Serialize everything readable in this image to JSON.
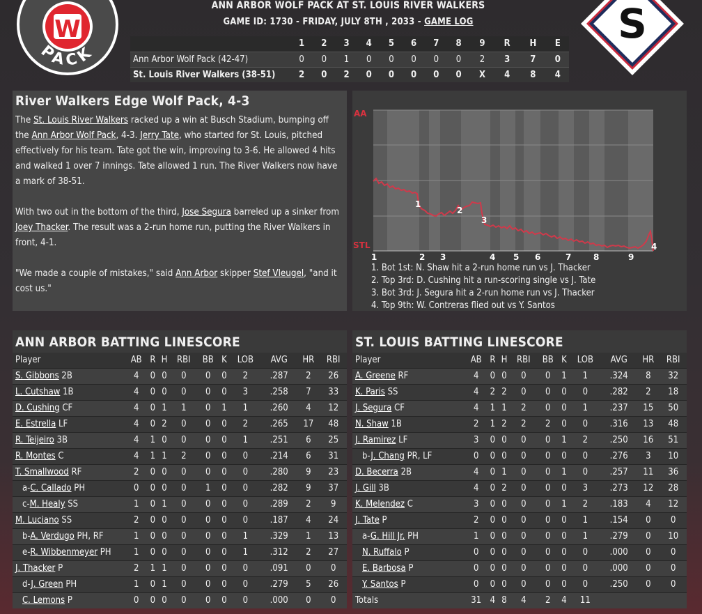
{
  "header": {
    "title": "ANN ARBOR WOLF PACK AT ST. LOUIS RIVER WALKERS",
    "subtitle": "GAME ID: 1730 - FRIDAY, JULY 8TH , 2033 - ",
    "game_log_link": "GAME LOG",
    "away_logo_text": "PACK",
    "away_logo_letter": "W",
    "home_logo_letter": "S"
  },
  "linescore": {
    "innings": [
      "1",
      "2",
      "3",
      "4",
      "5",
      "6",
      "7",
      "8",
      "9"
    ],
    "rhe_labels": [
      "R",
      "H",
      "E"
    ],
    "teams": [
      {
        "name": "Ann Arbor Wolf Pack (42-47)",
        "innings": [
          "0",
          "0",
          "1",
          "0",
          "0",
          "0",
          "0",
          "0",
          "2"
        ],
        "r": "3",
        "h": "7",
        "e": "0"
      },
      {
        "name": "St. Louis River Walkers (38-51)",
        "innings": [
          "2",
          "0",
          "2",
          "0",
          "0",
          "0",
          "0",
          "0",
          "X"
        ],
        "r": "4",
        "h": "8",
        "e": "4"
      }
    ]
  },
  "recap": {
    "headline": "River Walkers Edge Wolf Pack, 4-3",
    "p1": [
      {
        "t": "The "
      },
      {
        "t": "St. Louis River Walkers",
        "link": true
      },
      {
        "t": " racked up a win at Busch Stadium, bumping off the "
      },
      {
        "t": "Ann Arbor Wolf Pack",
        "link": true
      },
      {
        "t": ", 4-3. "
      },
      {
        "t": "Jerry Tate",
        "link": true
      },
      {
        "t": ", who started for St. Louis, pitched effectively for his team. Tate got the win, improving to 3-6. He allowed 4 hits and walked 1 over 7 innings. Tate allowed 1 run. The River Walkers now have a mark of 38-51."
      }
    ],
    "p2": [
      {
        "t": "With two out in the bottom of the third, "
      },
      {
        "t": "Jose Segura",
        "link": true
      },
      {
        "t": " barreled up a sinker from "
      },
      {
        "t": "Joey Thacker",
        "link": true
      },
      {
        "t": ". The result was a 2-run home run, putting the River Walkers in front, 4-1."
      }
    ],
    "p3": [
      {
        "t": "\"We made a couple of mistakes,\" said "
      },
      {
        "t": "Ann Arbor",
        "link": true
      },
      {
        "t": " skipper "
      },
      {
        "t": "Stef Vleugel",
        "link": true
      },
      {
        "t": ", \"and it cost us.\""
      }
    ]
  },
  "wp_chart": {
    "top_label": "AA",
    "bottom_label": "STL",
    "inning_labels": [
      "1",
      "2",
      "3",
      "4",
      "5",
      "6",
      "7",
      "8",
      "9"
    ],
    "colors": {
      "line": "#cf3a4b",
      "label": "#d7323f"
    },
    "event_markers": [
      "1",
      "2",
      "3",
      "4"
    ],
    "notes": [
      "1. Bot 1st: N. Shaw hit a 2-run home run vs J. Thacker",
      "2. Top 3rd: D. Cushing hit a run-scoring single vs J. Tate",
      "3. Bot 3rd: J. Segura hit a 2-run home run vs J. Thacker",
      "4. Top 9th: W. Contreras flied out vs Y. Santos"
    ]
  },
  "away_batting": {
    "title": "ANN ARBOR BATTING LINESCORE",
    "headers": [
      "Player",
      "AB",
      "R",
      "H",
      "RBI",
      "BB",
      "K",
      "LOB",
      "AVG",
      "HR",
      "RBI"
    ],
    "rows": [
      {
        "prefix": "",
        "name": "S. Gibbons",
        "pos": "2B",
        "s": [
          "4",
          "0",
          "0",
          "0",
          "0",
          "0",
          "2",
          ".287",
          "2",
          "26"
        ]
      },
      {
        "prefix": "",
        "name": "L. Cutshaw",
        "pos": "1B",
        "s": [
          "4",
          "0",
          "0",
          "0",
          "0",
          "0",
          "3",
          ".258",
          "7",
          "33"
        ]
      },
      {
        "prefix": "",
        "name": "D. Cushing",
        "pos": "CF",
        "s": [
          "4",
          "0",
          "1",
          "1",
          "0",
          "1",
          "1",
          ".260",
          "4",
          "12"
        ]
      },
      {
        "prefix": "",
        "name": "E. Estrella",
        "pos": "LF",
        "s": [
          "4",
          "0",
          "2",
          "0",
          "0",
          "0",
          "2",
          ".265",
          "17",
          "48"
        ]
      },
      {
        "prefix": "",
        "name": "R. Teijeiro",
        "pos": "3B",
        "s": [
          "4",
          "1",
          "0",
          "0",
          "0",
          "0",
          "1",
          ".251",
          "6",
          "25"
        ]
      },
      {
        "prefix": "",
        "name": "R. Montes",
        "pos": "C",
        "s": [
          "4",
          "1",
          "1",
          "2",
          "0",
          "0",
          "0",
          ".214",
          "6",
          "31"
        ]
      },
      {
        "prefix": "",
        "name": "T. Smallwood",
        "pos": "RF",
        "s": [
          "2",
          "0",
          "0",
          "0",
          "0",
          "0",
          "0",
          ".280",
          "9",
          "23"
        ]
      },
      {
        "prefix": "a-",
        "name": "C. Callado",
        "pos": "PH",
        "s": [
          "0",
          "0",
          "0",
          "0",
          "1",
          "0",
          "0",
          ".282",
          "9",
          "37"
        ]
      },
      {
        "prefix": "c-",
        "name": "M. Healy",
        "pos": "SS",
        "s": [
          "1",
          "0",
          "1",
          "0",
          "0",
          "0",
          "0",
          ".289",
          "2",
          "9"
        ]
      },
      {
        "prefix": "",
        "name": "M. Luciano",
        "pos": "SS",
        "s": [
          "2",
          "0",
          "0",
          "0",
          "0",
          "0",
          "0",
          ".187",
          "4",
          "24"
        ]
      },
      {
        "prefix": "b-",
        "name": "A. Verdugo",
        "pos": "PH, RF",
        "s": [
          "1",
          "0",
          "0",
          "0",
          "0",
          "0",
          "1",
          ".329",
          "1",
          "13"
        ]
      },
      {
        "prefix": "e-",
        "name": "R. Wibbenmeyer",
        "pos": "PH",
        "s": [
          "1",
          "0",
          "0",
          "0",
          "0",
          "0",
          "1",
          ".312",
          "2",
          "27"
        ]
      },
      {
        "prefix": "",
        "name": "J. Thacker",
        "pos": "P",
        "s": [
          "2",
          "1",
          "1",
          "0",
          "0",
          "0",
          "0",
          ".091",
          "0",
          "0"
        ]
      },
      {
        "prefix": "d-",
        "name": "J. Green",
        "pos": "PH",
        "s": [
          "1",
          "0",
          "1",
          "0",
          "0",
          "0",
          "0",
          ".279",
          "5",
          "26"
        ]
      },
      {
        "prefix": "",
        "name": "C. Lemons",
        "pos": "P",
        "s": [
          "0",
          "0",
          "0",
          "0",
          "0",
          "0",
          "0",
          ".000",
          "0",
          "0"
        ],
        "indent": true
      }
    ]
  },
  "home_batting": {
    "title": "ST. LOUIS BATTING LINESCORE",
    "headers": [
      "Player",
      "AB",
      "R",
      "H",
      "RBI",
      "BB",
      "K",
      "LOB",
      "AVG",
      "HR",
      "RBI"
    ],
    "rows": [
      {
        "prefix": "",
        "name": "A. Greene",
        "pos": "RF",
        "s": [
          "4",
          "0",
          "0",
          "0",
          "0",
          "1",
          "1",
          ".324",
          "8",
          "32"
        ]
      },
      {
        "prefix": "",
        "name": "K. Paris",
        "pos": "SS",
        "s": [
          "4",
          "2",
          "2",
          "0",
          "0",
          "0",
          "0",
          ".282",
          "2",
          "18"
        ]
      },
      {
        "prefix": "",
        "name": "J. Segura",
        "pos": "CF",
        "s": [
          "4",
          "1",
          "1",
          "2",
          "0",
          "0",
          "1",
          ".237",
          "15",
          "50"
        ]
      },
      {
        "prefix": "",
        "name": "N. Shaw",
        "pos": "1B",
        "s": [
          "2",
          "1",
          "2",
          "2",
          "2",
          "0",
          "0",
          ".316",
          "13",
          "48"
        ]
      },
      {
        "prefix": "",
        "name": "J. Ramirez",
        "pos": "LF",
        "s": [
          "3",
          "0",
          "0",
          "0",
          "0",
          "1",
          "2",
          ".250",
          "16",
          "51"
        ]
      },
      {
        "prefix": "b-",
        "name": "J. Chang",
        "pos": "PR, LF",
        "s": [
          "0",
          "0",
          "0",
          "0",
          "0",
          "0",
          "0",
          ".276",
          "3",
          "10"
        ]
      },
      {
        "prefix": "",
        "name": "D. Becerra",
        "pos": "2B",
        "s": [
          "4",
          "0",
          "1",
          "0",
          "0",
          "1",
          "0",
          ".257",
          "11",
          "36"
        ]
      },
      {
        "prefix": "",
        "name": "J. Gill",
        "pos": "3B",
        "s": [
          "4",
          "0",
          "2",
          "0",
          "0",
          "0",
          "3",
          ".273",
          "12",
          "28"
        ]
      },
      {
        "prefix": "",
        "name": "K. Melendez",
        "pos": "C",
        "s": [
          "3",
          "0",
          "0",
          "0",
          "0",
          "1",
          "2",
          ".183",
          "4",
          "12"
        ]
      },
      {
        "prefix": "",
        "name": "J. Tate",
        "pos": "P",
        "s": [
          "2",
          "0",
          "0",
          "0",
          "0",
          "0",
          "1",
          ".154",
          "0",
          "0"
        ]
      },
      {
        "prefix": "a-",
        "name": "G. Hill Jr.",
        "pos": "PH",
        "s": [
          "1",
          "0",
          "0",
          "0",
          "0",
          "0",
          "1",
          ".279",
          "0",
          "10"
        ]
      },
      {
        "prefix": "",
        "name": "N. Ruffalo",
        "pos": "P",
        "s": [
          "0",
          "0",
          "0",
          "0",
          "0",
          "0",
          "0",
          ".000",
          "0",
          "0"
        ],
        "indent": true
      },
      {
        "prefix": "",
        "name": "E. Barbosa",
        "pos": "P",
        "s": [
          "0",
          "0",
          "0",
          "0",
          "0",
          "0",
          "0",
          ".000",
          "0",
          "0"
        ],
        "indent": true
      },
      {
        "prefix": "",
        "name": "Y. Santos",
        "pos": "P",
        "s": [
          "0",
          "0",
          "0",
          "0",
          "0",
          "0",
          "0",
          ".250",
          "0",
          "0"
        ],
        "indent": true
      }
    ],
    "totals": {
      "label": "Totals",
      "s": [
        "31",
        "4",
        "8",
        "4",
        "2",
        "4",
        "11",
        "",
        "",
        ""
      ]
    }
  }
}
